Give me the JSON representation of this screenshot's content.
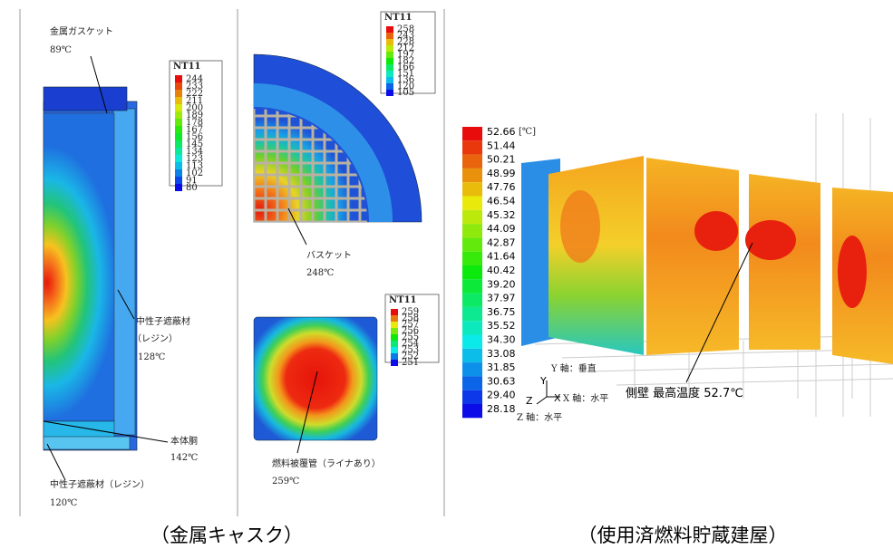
{
  "cask_labels": [
    "金属ガスケット",
    "89℃",
    "中性子遮蔽材",
    "（レジン）",
    "128℃",
    "本体胴",
    "142℃",
    "中性子遮蔽材（レジン）",
    "120℃",
    "バスケット",
    "248℃",
    "燃料被覆管（ライナあり）",
    "259℃"
  ],
  "legends": [
    {
      "title": "NT11",
      "labels": [
        "244",
        "233",
        "222",
        "211",
        "200",
        "189",
        "178",
        "167",
        "156",
        "145",
        "134",
        "123",
        "113",
        "102",
        "91",
        "80"
      ]
    },
    {
      "title": "NT11",
      "labels": [
        "258",
        "243",
        "228",
        "212",
        "197",
        "182",
        "166",
        "151",
        "136",
        "120",
        "105"
      ]
    },
    {
      "title": "NT11",
      "labels": [
        "259",
        "258",
        "257",
        "256",
        "255",
        "254",
        "253",
        "252",
        "251"
      ]
    }
  ],
  "building": {
    "unit": "[℃]",
    "scale": [
      "52.66",
      "51.44",
      "50.21",
      "48.99",
      "47.76",
      "46.54",
      "45.32",
      "44.09",
      "42.87",
      "41.64",
      "40.42",
      "39.20",
      "37.97",
      "36.75",
      "35.52",
      "34.30",
      "33.08",
      "31.85",
      "30.63",
      "29.40",
      "28.18"
    ],
    "note": "側壁 最高温度 52.7℃",
    "axes": [
      "Y",
      "Y 軸：垂直",
      "Z",
      "X",
      "X 軸：水平",
      "Z 軸：水平"
    ]
  },
  "captions": [
    "（金属キャスク）",
    "（使用済燃料貯蔵建屋）"
  ]
}
